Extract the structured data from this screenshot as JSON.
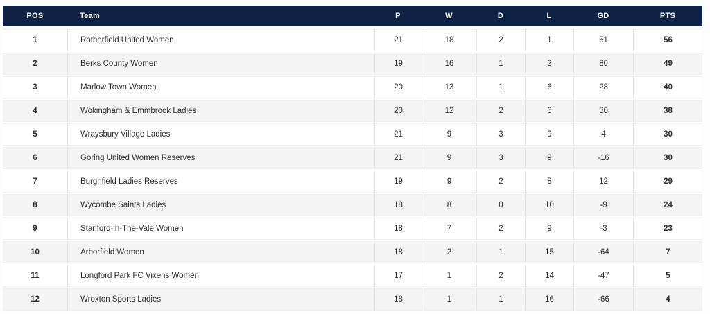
{
  "colors": {
    "header_bg": "#0d2244",
    "header_text": "#ffffff",
    "row_bg": "#ffffff",
    "row_alt_bg": "#f4f4f4",
    "body_text": "#2e2e2e",
    "separator": "#e3e3e3",
    "page_bg": "#fdfdfd"
  },
  "table": {
    "columns": [
      {
        "key": "pos",
        "label": "POS"
      },
      {
        "key": "team",
        "label": "Team"
      },
      {
        "key": "p",
        "label": "P"
      },
      {
        "key": "w",
        "label": "W"
      },
      {
        "key": "d",
        "label": "D"
      },
      {
        "key": "l",
        "label": "L"
      },
      {
        "key": "gd",
        "label": "GD"
      },
      {
        "key": "pts",
        "label": "PTS"
      }
    ],
    "rows": [
      {
        "pos": "1",
        "team": "Rotherfield United Women",
        "p": "21",
        "w": "18",
        "d": "2",
        "l": "1",
        "gd": "51",
        "pts": "56"
      },
      {
        "pos": "2",
        "team": "Berks County Women",
        "p": "19",
        "w": "16",
        "d": "1",
        "l": "2",
        "gd": "80",
        "pts": "49"
      },
      {
        "pos": "3",
        "team": "Marlow Town Women",
        "p": "20",
        "w": "13",
        "d": "1",
        "l": "6",
        "gd": "28",
        "pts": "40"
      },
      {
        "pos": "4",
        "team": "Wokingham & Emmbrook Ladies",
        "p": "20",
        "w": "12",
        "d": "2",
        "l": "6",
        "gd": "30",
        "pts": "38"
      },
      {
        "pos": "5",
        "team": "Wraysbury Village Ladies",
        "p": "21",
        "w": "9",
        "d": "3",
        "l": "9",
        "gd": "4",
        "pts": "30"
      },
      {
        "pos": "6",
        "team": "Goring United Women Reserves",
        "p": "21",
        "w": "9",
        "d": "3",
        "l": "9",
        "gd": "-16",
        "pts": "30"
      },
      {
        "pos": "7",
        "team": "Burghfield Ladies Reserves",
        "p": "19",
        "w": "9",
        "d": "2",
        "l": "8",
        "gd": "12",
        "pts": "29"
      },
      {
        "pos": "8",
        "team": "Wycombe Saints Ladies",
        "p": "18",
        "w": "8",
        "d": "0",
        "l": "10",
        "gd": "-9",
        "pts": "24"
      },
      {
        "pos": "9",
        "team": "Stanford-in-The-Vale Women",
        "p": "18",
        "w": "7",
        "d": "2",
        "l": "9",
        "gd": "-3",
        "pts": "23"
      },
      {
        "pos": "10",
        "team": "Arborfield Women",
        "p": "18",
        "w": "2",
        "d": "1",
        "l": "15",
        "gd": "-64",
        "pts": "7"
      },
      {
        "pos": "11",
        "team": "Longford Park FC Vixens Women",
        "p": "17",
        "w": "1",
        "d": "2",
        "l": "14",
        "gd": "-47",
        "pts": "5"
      },
      {
        "pos": "12",
        "team": "Wroxton Sports Ladies",
        "p": "18",
        "w": "1",
        "d": "1",
        "l": "16",
        "gd": "-66",
        "pts": "4"
      }
    ]
  },
  "chart_data": {
    "type": "table",
    "title": "League standings table",
    "columns": [
      "POS",
      "Team",
      "P",
      "W",
      "D",
      "L",
      "GD",
      "PTS"
    ],
    "rows": [
      [
        1,
        "Rotherfield United Women",
        21,
        18,
        2,
        1,
        51,
        56
      ],
      [
        2,
        "Berks County Women",
        19,
        16,
        1,
        2,
        80,
        49
      ],
      [
        3,
        "Marlow Town Women",
        20,
        13,
        1,
        6,
        28,
        40
      ],
      [
        4,
        "Wokingham & Emmbrook Ladies",
        20,
        12,
        2,
        6,
        30,
        38
      ],
      [
        5,
        "Wraysbury Village Ladies",
        21,
        9,
        3,
        9,
        4,
        30
      ],
      [
        6,
        "Goring United Women Reserves",
        21,
        9,
        3,
        9,
        -16,
        30
      ],
      [
        7,
        "Burghfield Ladies Reserves",
        19,
        9,
        2,
        8,
        12,
        29
      ],
      [
        8,
        "Wycombe Saints Ladies",
        18,
        8,
        0,
        10,
        -9,
        24
      ],
      [
        9,
        "Stanford-in-The-Vale Women",
        18,
        7,
        2,
        9,
        -3,
        23
      ],
      [
        10,
        "Arborfield Women",
        18,
        2,
        1,
        15,
        -64,
        7
      ],
      [
        11,
        "Longford Park FC Vixens Women",
        17,
        1,
        2,
        14,
        -47,
        5
      ],
      [
        12,
        "Wroxton Sports Ladies",
        18,
        1,
        1,
        16,
        -66,
        4
      ]
    ],
    "layout": {
      "header_style": "dark-navy bar, white bold labels",
      "striping": "odd rows white, even rows light gray",
      "bold_columns": [
        "POS",
        "PTS"
      ]
    }
  }
}
